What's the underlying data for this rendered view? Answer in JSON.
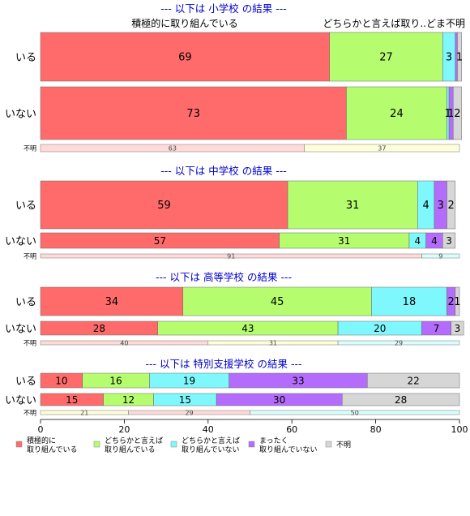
{
  "colors": {
    "c0": "#ff6b6b",
    "c1": "#b5fd6e",
    "c2": "#7ef8fd",
    "c3": "#b46cfd",
    "c4": "#d6d6d6",
    "title": "#0000cc",
    "small_bg": [
      "#fedad9",
      "#fefed9",
      "#d9fefe"
    ]
  },
  "top_labels": {
    "left": "積極的に取り組んでいる",
    "right": "どちらかと言えば取り..どま不明"
  },
  "legend": [
    {
      "label": "積極的に\n取り組んでいる"
    },
    {
      "label": "どちらかと言えば\n取り組んでいる"
    },
    {
      "label": "どちらかと言えば\n取り組んでいない"
    },
    {
      "label": "まったく\n取り組んでいない"
    },
    {
      "label": "不明"
    }
  ],
  "chart_data": {
    "type": "bar",
    "orientation": "horizontal",
    "stacked": true,
    "xlim": [
      0,
      100
    ],
    "xticks": [
      "0",
      "20",
      "40",
      "60",
      "80",
      "100"
    ],
    "panels": [
      {
        "title": "--- 以下は 小学校 の結果 ---",
        "rows": [
          {
            "label": "いる",
            "values": [
              69,
              27,
              3,
              0.5,
              1
            ],
            "labels": [
              "69",
              "27",
              "3",
              "",
              "1"
            ]
          },
          {
            "label": "いない",
            "values": [
              73,
              24,
              0.5,
              1,
              2
            ],
            "labels": [
              "73",
              "24",
              "1",
              "1",
              "2"
            ]
          }
        ],
        "unknown": {
          "label": "不明",
          "values": [
            63,
            37
          ],
          "labels": [
            "63",
            "37"
          ],
          "colors": [
            0,
            1
          ]
        }
      },
      {
        "title": "--- 以下は 中学校 の結果 ---",
        "rows": [
          {
            "label": "いる",
            "values": [
              59,
              31,
              4,
              3,
              2
            ],
            "labels": [
              "59",
              "31",
              "4",
              "3",
              "2"
            ]
          },
          {
            "label": "いない",
            "values": [
              57,
              31,
              4,
              4,
              3
            ],
            "labels": [
              "57",
              "31",
              "4",
              "4",
              "3"
            ]
          }
        ],
        "unknown": {
          "label": "不明",
          "values": [
            91,
            9
          ],
          "labels": [
            "91",
            "9"
          ],
          "colors": [
            0,
            2
          ]
        }
      },
      {
        "title": "--- 以下は 高等学校 の結果 ---",
        "rows": [
          {
            "label": "いる",
            "values": [
              34,
              45,
              18,
              2,
              1
            ],
            "labels": [
              "34",
              "45",
              "18",
              "2",
              "1"
            ]
          },
          {
            "label": "いない",
            "values": [
              28,
              43,
              20,
              7,
              3
            ],
            "labels": [
              "28",
              "43",
              "20",
              "7",
              "3"
            ]
          }
        ],
        "unknown": {
          "label": "不明",
          "values": [
            40,
            31,
            29
          ],
          "labels": [
            "40",
            "31",
            "29"
          ],
          "colors": [
            0,
            1,
            2
          ]
        }
      },
      {
        "title": "--- 以下は 特別支援学校 の結果 ---",
        "rows": [
          {
            "label": "いる",
            "values": [
              10,
              16,
              19,
              33,
              22
            ],
            "labels": [
              "10",
              "16",
              "19",
              "33",
              "22"
            ]
          },
          {
            "label": "いない",
            "values": [
              15,
              12,
              15,
              30,
              28
            ],
            "labels": [
              "15",
              "12",
              "15",
              "30",
              "28"
            ]
          }
        ],
        "unknown": {
          "label": "不明",
          "values": [
            21,
            29,
            50
          ],
          "labels": [
            "21",
            "29",
            "50"
          ],
          "colors": [
            1,
            0,
            2
          ]
        }
      }
    ]
  }
}
